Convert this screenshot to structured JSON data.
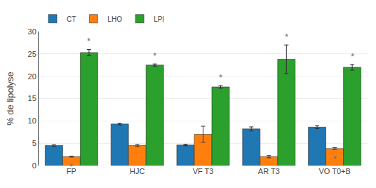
{
  "chart_data": {
    "type": "bar",
    "categories": [
      "FP",
      "HJC",
      "VF T3",
      "AR T3",
      "VO T0+B"
    ],
    "series": [
      {
        "name": "CT",
        "values": [
          4.5,
          9.3,
          4.6,
          8.2,
          8.6
        ],
        "errors": [
          0.18,
          0.2,
          0.18,
          0.45,
          0.35
        ]
      },
      {
        "name": "LHO",
        "values": [
          2.0,
          4.5,
          7.0,
          2.0,
          3.8
        ],
        "errors": [
          0.1,
          0.25,
          1.8,
          0.25,
          0.2
        ]
      },
      {
        "name": "LPI",
        "values": [
          25.3,
          22.5,
          17.6,
          23.8,
          22.0
        ],
        "errors": [
          0.7,
          0.25,
          0.3,
          3.2,
          0.65
        ]
      }
    ],
    "ylabel": "% de lipolyse",
    "ylim": [
      0,
      30
    ],
    "yticks": [
      0,
      5,
      10,
      15,
      20,
      25,
      30
    ],
    "grid": true,
    "legend": "upper left",
    "annotations": [
      {
        "text": "*",
        "category": "FP",
        "series": "LHO",
        "position": "below"
      },
      {
        "text": "*",
        "category": "FP",
        "series": "LPI",
        "position": "above"
      },
      {
        "text": "*",
        "category": "HJC",
        "series": "LPI",
        "position": "above"
      },
      {
        "text": "*",
        "category": "VF T3",
        "series": "LPI",
        "position": "above"
      },
      {
        "text": "*",
        "category": "AR T3",
        "series": "LPI",
        "position": "above"
      },
      {
        "text": "*",
        "category": "VO T0+B",
        "series": "LHO",
        "position": "below"
      },
      {
        "text": "*",
        "category": "VO T0+B",
        "series": "LPI",
        "position": "above"
      }
    ]
  }
}
